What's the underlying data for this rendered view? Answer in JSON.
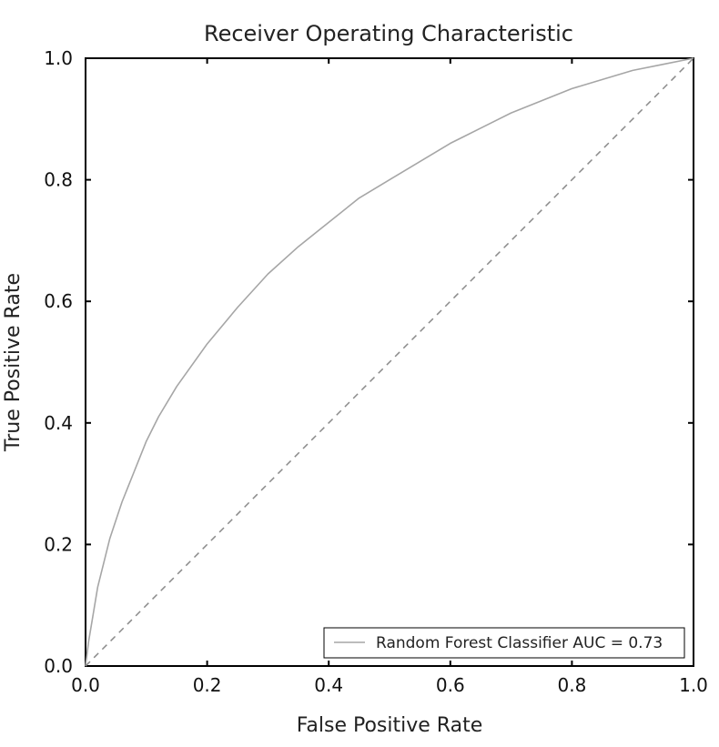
{
  "chart_data": {
    "type": "line",
    "title": "Receiver Operating Characteristic",
    "xlabel": "False Positive Rate",
    "ylabel": "True Positive Rate",
    "xlim": [
      0.0,
      1.0
    ],
    "ylim": [
      0.0,
      1.0
    ],
    "x_ticks": [
      "0.0",
      "0.2",
      "0.4",
      "0.6",
      "0.8",
      "1.0"
    ],
    "y_ticks": [
      "0.0",
      "0.2",
      "0.4",
      "0.6",
      "0.8",
      "1.0"
    ],
    "grid": false,
    "legend_position": "bottom-right",
    "series": [
      {
        "name": "Random Forest Classifier AUC = 0.73",
        "color": "#a6a6a6",
        "style": "solid",
        "x": [
          0.0,
          0.005,
          0.01,
          0.02,
          0.03,
          0.04,
          0.05,
          0.06,
          0.07,
          0.08,
          0.1,
          0.12,
          0.15,
          0.2,
          0.25,
          0.3,
          0.35,
          0.4,
          0.45,
          0.5,
          0.55,
          0.6,
          0.65,
          0.7,
          0.75,
          0.8,
          0.85,
          0.9,
          0.95,
          1.0
        ],
        "y": [
          0.0,
          0.04,
          0.07,
          0.13,
          0.17,
          0.21,
          0.24,
          0.27,
          0.295,
          0.32,
          0.37,
          0.41,
          0.46,
          0.53,
          0.59,
          0.645,
          0.69,
          0.73,
          0.77,
          0.8,
          0.83,
          0.86,
          0.885,
          0.91,
          0.93,
          0.95,
          0.965,
          0.98,
          0.99,
          1.0
        ]
      },
      {
        "color": "#8a8a8a",
        "style": "dashed",
        "x": [
          0.0,
          1.0
        ],
        "y": [
          0.0,
          1.0
        ]
      }
    ],
    "legend": {
      "label": "Random Forest Classifier AUC = 0.73"
    }
  }
}
